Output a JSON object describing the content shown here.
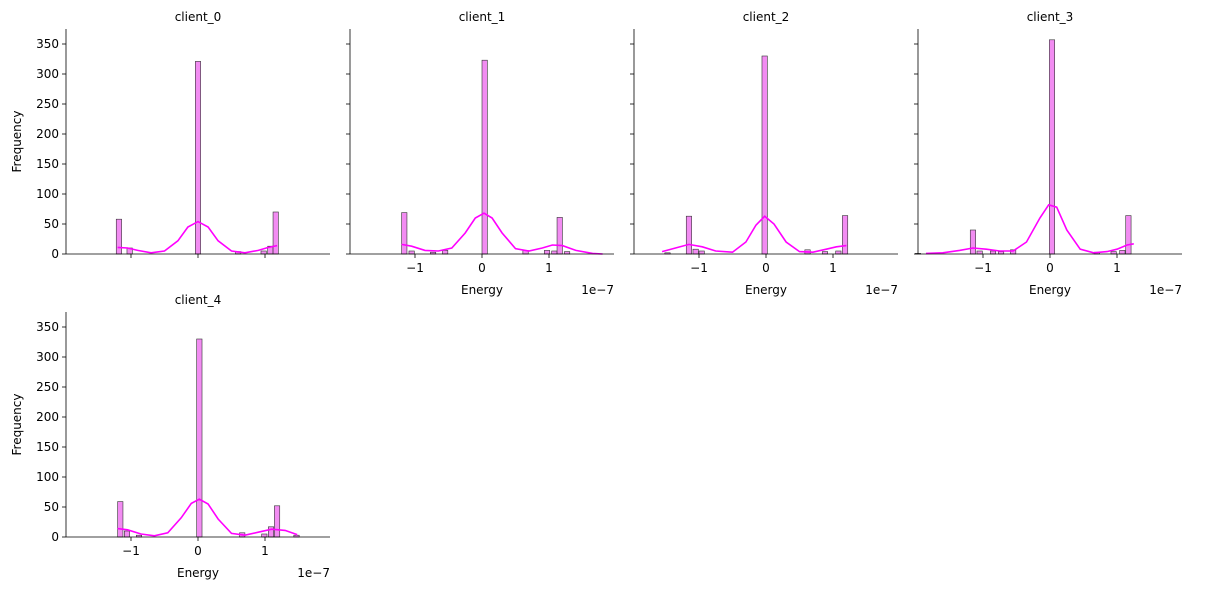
{
  "chart_data": {
    "type": "histogram-grid",
    "xlabel": "Energy",
    "ylabel": "Frequency",
    "x_offset_label": "1e−7",
    "x_ticks": [
      -1,
      0,
      1
    ],
    "x_tick_labels": [
      "−1",
      "0",
      "1"
    ],
    "y_ticks": [
      0,
      50,
      100,
      150,
      200,
      250,
      300,
      350
    ],
    "ylim": [
      0,
      375
    ],
    "xlim": [
      -1.97,
      1.97
    ],
    "bar_color": "#ee66ee",
    "kde_color": "#ff00ff",
    "panels": [
      {
        "title": "client_0",
        "bins": [
          {
            "x": -1.18,
            "count": 58
          },
          {
            "x": -1.02,
            "count": 10
          },
          {
            "x": 0.0,
            "count": 321
          },
          {
            "x": 0.6,
            "count": 4
          },
          {
            "x": 0.98,
            "count": 5
          },
          {
            "x": 1.08,
            "count": 13
          },
          {
            "x": 1.16,
            "count": 70
          }
        ],
        "kde": [
          [
            -1.2,
            11
          ],
          [
            -1.05,
            10
          ],
          [
            -0.9,
            6
          ],
          [
            -0.7,
            2
          ],
          [
            -0.5,
            5
          ],
          [
            -0.3,
            22
          ],
          [
            -0.15,
            45
          ],
          [
            0,
            54
          ],
          [
            0.15,
            45
          ],
          [
            0.3,
            22
          ],
          [
            0.5,
            5
          ],
          [
            0.7,
            2
          ],
          [
            0.9,
            6
          ],
          [
            1.05,
            11
          ],
          [
            1.18,
            14
          ]
        ]
      },
      {
        "title": "client_1",
        "bins": [
          {
            "x": -1.16,
            "count": 69
          },
          {
            "x": -1.05,
            "count": 5
          },
          {
            "x": -0.73,
            "count": 3
          },
          {
            "x": -0.55,
            "count": 6
          },
          {
            "x": 0.04,
            "count": 323
          },
          {
            "x": 0.65,
            "count": 6
          },
          {
            "x": 0.97,
            "count": 6
          },
          {
            "x": 1.08,
            "count": 5
          },
          {
            "x": 1.16,
            "count": 61
          },
          {
            "x": 1.27,
            "count": 4
          }
        ],
        "kde": [
          [
            -1.2,
            16
          ],
          [
            -1.05,
            13
          ],
          [
            -0.85,
            6
          ],
          [
            -0.65,
            5
          ],
          [
            -0.45,
            10
          ],
          [
            -0.25,
            35
          ],
          [
            -0.1,
            60
          ],
          [
            0.03,
            68
          ],
          [
            0.15,
            60
          ],
          [
            0.3,
            35
          ],
          [
            0.5,
            9
          ],
          [
            0.7,
            5
          ],
          [
            0.9,
            10
          ],
          [
            1.05,
            15
          ],
          [
            1.2,
            14
          ],
          [
            1.4,
            6
          ],
          [
            1.65,
            1
          ],
          [
            1.8,
            0
          ]
        ]
      },
      {
        "title": "client_2",
        "bins": [
          {
            "x": -1.47,
            "count": 2
          },
          {
            "x": -1.15,
            "count": 63
          },
          {
            "x": -1.05,
            "count": 8
          },
          {
            "x": -0.96,
            "count": 5
          },
          {
            "x": -0.02,
            "count": 330
          },
          {
            "x": 0.62,
            "count": 7
          },
          {
            "x": 0.88,
            "count": 4
          },
          {
            "x": 1.08,
            "count": 5
          },
          {
            "x": 1.18,
            "count": 64
          }
        ],
        "kde": [
          [
            -1.55,
            4
          ],
          [
            -1.35,
            10
          ],
          [
            -1.15,
            16
          ],
          [
            -0.95,
            12
          ],
          [
            -0.75,
            5
          ],
          [
            -0.5,
            3
          ],
          [
            -0.3,
            20
          ],
          [
            -0.15,
            48
          ],
          [
            -0.02,
            63
          ],
          [
            0.12,
            50
          ],
          [
            0.3,
            20
          ],
          [
            0.5,
            4
          ],
          [
            0.7,
            3
          ],
          [
            0.9,
            8
          ],
          [
            1.05,
            12
          ],
          [
            1.2,
            14
          ]
        ]
      },
      {
        "title": "client_3",
        "bins": [
          {
            "x": -1.97,
            "count": 1
          },
          {
            "x": -1.15,
            "count": 40
          },
          {
            "x": -1.05,
            "count": 5
          },
          {
            "x": -0.85,
            "count": 5
          },
          {
            "x": -0.73,
            "count": 4
          },
          {
            "x": -0.55,
            "count": 7
          },
          {
            "x": 0.03,
            "count": 357
          },
          {
            "x": 0.7,
            "count": 3
          },
          {
            "x": 0.95,
            "count": 4
          },
          {
            "x": 1.08,
            "count": 6
          },
          {
            "x": 1.17,
            "count": 64
          }
        ],
        "kde": [
          [
            -1.85,
            1
          ],
          [
            -1.6,
            2
          ],
          [
            -1.35,
            6
          ],
          [
            -1.15,
            10
          ],
          [
            -0.95,
            8
          ],
          [
            -0.75,
            5
          ],
          [
            -0.55,
            5
          ],
          [
            -0.35,
            20
          ],
          [
            -0.15,
            60
          ],
          [
            -0.02,
            82
          ],
          [
            0.1,
            78
          ],
          [
            0.25,
            40
          ],
          [
            0.45,
            8
          ],
          [
            0.65,
            2
          ],
          [
            0.85,
            4
          ],
          [
            1.0,
            8
          ],
          [
            1.15,
            15
          ],
          [
            1.25,
            17
          ]
        ]
      },
      {
        "title": "client_4",
        "bins": [
          {
            "x": -1.16,
            "count": 59
          },
          {
            "x": -1.06,
            "count": 10
          },
          {
            "x": -0.88,
            "count": 3
          },
          {
            "x": 0.02,
            "count": 330
          },
          {
            "x": 0.66,
            "count": 7
          },
          {
            "x": 0.99,
            "count": 5
          },
          {
            "x": 1.09,
            "count": 17
          },
          {
            "x": 1.18,
            "count": 52
          },
          {
            "x": 1.47,
            "count": 3
          }
        ],
        "kde": [
          [
            -1.2,
            14
          ],
          [
            -1.05,
            12
          ],
          [
            -0.85,
            5
          ],
          [
            -0.65,
            2
          ],
          [
            -0.45,
            7
          ],
          [
            -0.25,
            32
          ],
          [
            -0.1,
            56
          ],
          [
            0.02,
            63
          ],
          [
            0.15,
            55
          ],
          [
            0.3,
            30
          ],
          [
            0.5,
            6
          ],
          [
            0.7,
            3
          ],
          [
            0.9,
            8
          ],
          [
            1.1,
            13
          ],
          [
            1.3,
            11
          ],
          [
            1.48,
            4
          ]
        ]
      }
    ]
  }
}
